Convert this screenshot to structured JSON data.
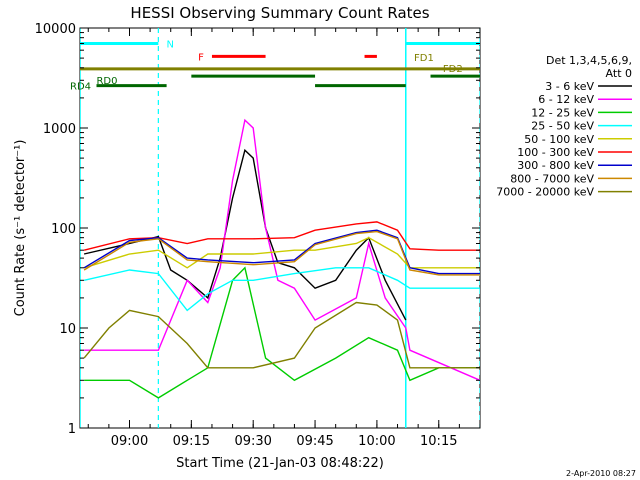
{
  "chart_data": {
    "type": "line",
    "title": "HESSI Observing Summary Count Rates",
    "xlabel": "Start Time (21-Jan-03 08:48:22)",
    "ylabel": "Count Rate (s⁻¹ detector⁻¹)",
    "y_scale": "log",
    "ylim": [
      1,
      10000
    ],
    "xlim": [
      "08:48",
      "10:25"
    ],
    "x_ticks": [
      "09:00",
      "09:15",
      "09:30",
      "09:45",
      "10:00",
      "10:15"
    ],
    "y_ticks": [
      "1",
      "10",
      "100",
      "1000",
      "10000"
    ],
    "legend": {
      "placement": "right",
      "header": [
        "Det 1,3,4,5,6,9,",
        "Att 0"
      ]
    },
    "series": [
      {
        "name": "3 - 6 keV",
        "color": "#000000",
        "x": [
          "08:49",
          "09:00",
          "09:07",
          "09:10",
          "09:14",
          "09:19",
          "09:22",
          "09:25",
          "09:28",
          "09:30",
          "09:33",
          "09:36",
          "09:40",
          "09:45",
          "09:50",
          "09:55",
          "09:58",
          "10:02",
          "10:07"
        ],
        "y": [
          55,
          70,
          82,
          38,
          30,
          20,
          50,
          200,
          600,
          500,
          100,
          45,
          40,
          25,
          30,
          60,
          80,
          30,
          12
        ]
      },
      {
        "name": "6 - 12 keV",
        "color": "#ff00ff",
        "x": [
          "08:49",
          "09:07",
          "09:14",
          "09:19",
          "09:22",
          "09:25",
          "09:28",
          "09:30",
          "09:33",
          "09:36",
          "09:40",
          "09:45",
          "09:55",
          "09:58",
          "10:02",
          "10:07",
          "10:08",
          "10:25"
        ],
        "y": [
          6,
          6,
          30,
          18,
          40,
          300,
          1200,
          1000,
          100,
          30,
          25,
          12,
          20,
          70,
          20,
          10,
          6,
          3
        ]
      },
      {
        "name": "12 - 25 keV",
        "color": "#00cc00",
        "x": [
          "08:49",
          "09:00",
          "09:07",
          "09:14",
          "09:19",
          "09:25",
          "09:28",
          "09:33",
          "09:40",
          "09:50",
          "09:58",
          "10:05",
          "10:08",
          "10:15",
          "10:25"
        ],
        "y": [
          3,
          3,
          2,
          3,
          4,
          30,
          40,
          5,
          3,
          5,
          8,
          6,
          3,
          4,
          4
        ]
      },
      {
        "name": "25 - 50 keV",
        "color": "#00ffff",
        "x": [
          "08:49",
          "09:00",
          "09:07",
          "09:14",
          "09:19",
          "09:25",
          "09:30",
          "09:40",
          "09:50",
          "09:58",
          "10:05",
          "10:08",
          "10:15",
          "10:25"
        ],
        "y": [
          30,
          38,
          35,
          15,
          22,
          30,
          30,
          35,
          40,
          40,
          30,
          25,
          25,
          25
        ]
      },
      {
        "name": "50 - 100 keV",
        "color": "#cccc00",
        "x": [
          "08:49",
          "09:00",
          "09:07",
          "09:14",
          "09:19",
          "09:25",
          "09:30",
          "09:40",
          "09:45",
          "09:55",
          "09:58",
          "10:05",
          "10:08",
          "10:15",
          "10:25"
        ],
        "y": [
          40,
          55,
          60,
          40,
          55,
          55,
          55,
          60,
          60,
          70,
          80,
          55,
          40,
          40,
          40
        ]
      },
      {
        "name": "100 - 300 keV",
        "color": "#ff0000",
        "x": [
          "08:49",
          "09:00",
          "09:07",
          "09:14",
          "09:19",
          "09:30",
          "09:40",
          "09:45",
          "09:55",
          "10:00",
          "10:05",
          "10:08",
          "10:15",
          "10:25"
        ],
        "y": [
          60,
          78,
          80,
          70,
          78,
          78,
          80,
          95,
          110,
          115,
          95,
          62,
          60,
          60
        ]
      },
      {
        "name": "300 - 800 keV",
        "color": "#0000cc",
        "x": [
          "08:49",
          "09:00",
          "09:07",
          "09:14",
          "09:19",
          "09:30",
          "09:40",
          "09:45",
          "09:55",
          "10:00",
          "10:05",
          "10:08",
          "10:15",
          "10:25"
        ],
        "y": [
          40,
          75,
          80,
          50,
          48,
          45,
          48,
          70,
          90,
          95,
          80,
          40,
          35,
          35
        ]
      },
      {
        "name": "800 - 7000 keV",
        "color": "#cc8800",
        "x": [
          "08:49",
          "09:00",
          "09:07",
          "09:14",
          "09:19",
          "09:30",
          "09:40",
          "09:45",
          "09:55",
          "10:00",
          "10:05",
          "10:08",
          "10:15",
          "10:25"
        ],
        "y": [
          38,
          72,
          78,
          48,
          46,
          43,
          46,
          68,
          88,
          92,
          78,
          38,
          34,
          34
        ]
      },
      {
        "name": "7000 - 20000 keV",
        "color": "#808000",
        "x": [
          "08:49",
          "08:55",
          "09:00",
          "09:07",
          "09:14",
          "09:19",
          "09:30",
          "09:40",
          "09:45",
          "09:55",
          "10:00",
          "10:05",
          "10:08",
          "10:15",
          "10:25"
        ],
        "y": [
          5,
          10,
          15,
          13,
          7,
          4,
          4,
          5,
          10,
          18,
          17,
          12,
          4,
          4,
          4
        ]
      }
    ],
    "annotations": [
      {
        "label": "N",
        "color": "#00ffff",
        "type": "bar",
        "level": 7000,
        "segments": [
          [
            "08:48",
            "09:07"
          ],
          [
            "10:07",
            "10:25"
          ]
        ]
      },
      {
        "label": "F",
        "color": "#ff0000",
        "type": "bar",
        "level": 5200,
        "segments": [
          [
            "09:20",
            "09:33"
          ],
          [
            "09:57",
            "10:00"
          ]
        ]
      },
      {
        "label": "FD1",
        "color": "#808000",
        "type": "bar",
        "level": 3900,
        "segments": [
          [
            "08:48",
            "10:25"
          ]
        ]
      },
      {
        "label": "FD2",
        "color": "#808000",
        "type": "bar",
        "level": 3900,
        "segments": []
      },
      {
        "label": "RD0",
        "color": "#006600",
        "type": "bar",
        "level": 3300,
        "segments": [
          [
            "09:15",
            "09:45"
          ],
          [
            "10:13",
            "10:25"
          ]
        ]
      },
      {
        "label": "RD4",
        "color": "#006600",
        "type": "bar",
        "level": 2650,
        "segments": [
          [
            "08:52",
            "09:09"
          ],
          [
            "09:45",
            "10:07"
          ]
        ]
      }
    ],
    "night_boundaries": [
      "09:07",
      "10:25"
    ],
    "day_boundaries": [
      "08:48",
      "10:07"
    ],
    "footer": "2-Apr-2010 08:27"
  }
}
